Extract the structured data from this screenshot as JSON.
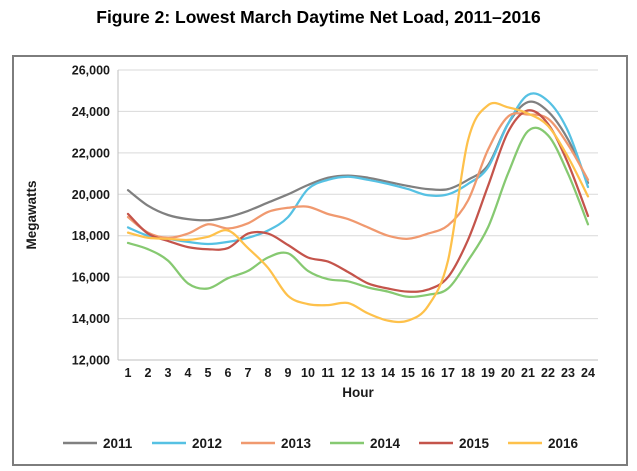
{
  "title": "Figure 2: Lowest March Daytime Net Load, 2011–2016",
  "chart_data": {
    "type": "line",
    "xlabel": "Hour",
    "ylabel": "Megawatts",
    "x": [
      1,
      2,
      3,
      4,
      5,
      6,
      7,
      8,
      9,
      10,
      11,
      12,
      13,
      14,
      15,
      16,
      17,
      18,
      19,
      20,
      21,
      22,
      23,
      24
    ],
    "ylim": [
      12000,
      26000
    ],
    "ytick_values": [
      12000,
      14000,
      16000,
      18000,
      20000,
      22000,
      24000,
      26000
    ],
    "ytick_labels": [
      "12,000",
      "14,000",
      "16,000",
      "18,000",
      "20,000",
      "22,000",
      "24,000",
      "26,000"
    ],
    "grid": true,
    "gridline_color": "#d9d9d9",
    "axis_line_color": "#bfbfbf",
    "legend_position": "bottom",
    "series": [
      {
        "name": "2011",
        "color": "#808080",
        "values": [
          20200,
          19450,
          19000,
          18800,
          18750,
          18900,
          19200,
          19600,
          20000,
          20450,
          20800,
          20900,
          20800,
          20600,
          20400,
          20250,
          20250,
          20700,
          21400,
          23400,
          24450,
          24000,
          22650,
          20550
        ]
      },
      {
        "name": "2012",
        "color": "#56c1e3",
        "values": [
          18400,
          18000,
          17850,
          17700,
          17600,
          17700,
          17900,
          18250,
          18900,
          20250,
          20700,
          20850,
          20700,
          20500,
          20250,
          19950,
          20000,
          20500,
          21300,
          23400,
          24800,
          24500,
          23050,
          20350
        ]
      },
      {
        "name": "2013",
        "color": "#f0996f",
        "values": [
          18900,
          18150,
          17900,
          18100,
          18550,
          18350,
          18600,
          19150,
          19350,
          19400,
          19050,
          18800,
          18400,
          18000,
          17850,
          18100,
          18500,
          19700,
          22150,
          23750,
          23850,
          23650,
          22400,
          20700
        ]
      },
      {
        "name": "2014",
        "color": "#86c971",
        "values": [
          17650,
          17350,
          16800,
          15700,
          15450,
          15950,
          16300,
          16950,
          17150,
          16300,
          15900,
          15800,
          15500,
          15300,
          15050,
          15150,
          15450,
          16800,
          18400,
          21000,
          23050,
          22850,
          21000,
          18550
        ]
      },
      {
        "name": "2015",
        "color": "#c4544b",
        "values": [
          19050,
          18100,
          17750,
          17450,
          17350,
          17400,
          18100,
          18100,
          17550,
          16950,
          16750,
          16250,
          15700,
          15450,
          15300,
          15400,
          16000,
          17800,
          20400,
          23000,
          24050,
          23400,
          21500,
          18950
        ]
      },
      {
        "name": "2016",
        "color": "#fec14b",
        "values": [
          18150,
          17900,
          17850,
          17800,
          17950,
          18250,
          17400,
          16450,
          15100,
          14700,
          14650,
          14750,
          14250,
          13900,
          13900,
          14600,
          16800,
          22600,
          24300,
          24200,
          23900,
          23300,
          21800,
          19900
        ]
      }
    ]
  }
}
